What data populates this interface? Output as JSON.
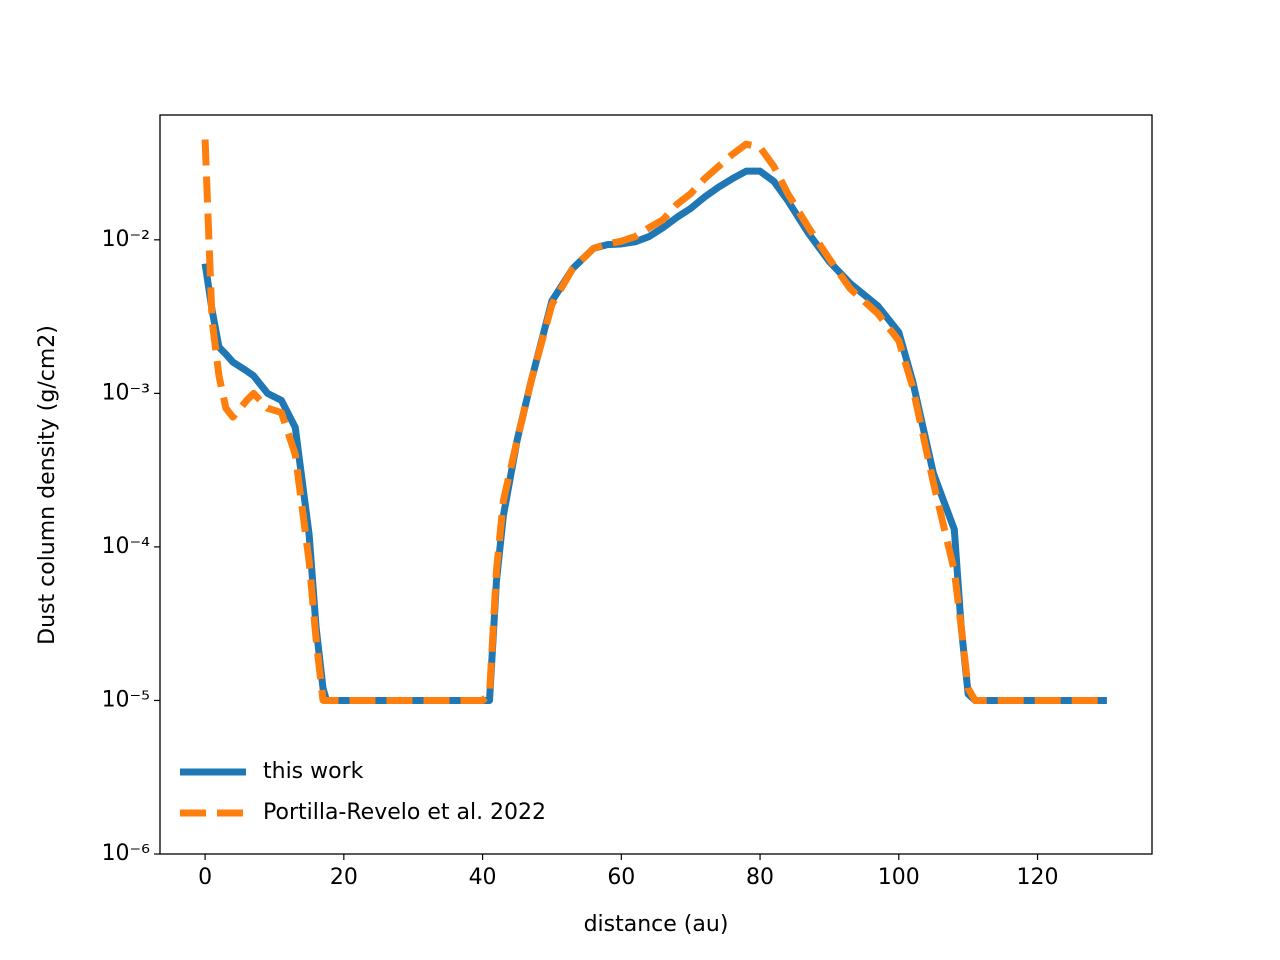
{
  "chart_data": {
    "type": "line",
    "xlabel": "distance (au)",
    "ylabel": "Dust column density (g/cm2)",
    "x": [
      0,
      1,
      2,
      3,
      4,
      6,
      7,
      9,
      11,
      13,
      15,
      16,
      17,
      17.5,
      20,
      30,
      40,
      41,
      42,
      43,
      45,
      47,
      50,
      53,
      56,
      58,
      60,
      62,
      64,
      66,
      68,
      70,
      72,
      74,
      76,
      78,
      80,
      82,
      84,
      87,
      90,
      93,
      97,
      100,
      102,
      105,
      108,
      109,
      110,
      111,
      112,
      120,
      130
    ],
    "series": [
      {
        "name": "this work",
        "color": "#1f77b4",
        "style": "solid",
        "values": [
          0.007,
          0.0035,
          0.002,
          0.0018,
          0.0016,
          0.0014,
          0.0013,
          0.001,
          0.0009,
          0.0006,
          0.00012,
          3e-05,
          1.2e-05,
          1e-05,
          1e-05,
          1e-05,
          1e-05,
          1e-05,
          6e-05,
          0.00016,
          0.0005,
          0.0012,
          0.004,
          0.0065,
          0.0088,
          0.0093,
          0.0094,
          0.0097,
          0.0105,
          0.012,
          0.014,
          0.016,
          0.019,
          0.022,
          0.025,
          0.028,
          0.028,
          0.024,
          0.018,
          0.011,
          0.0072,
          0.0052,
          0.0037,
          0.0025,
          0.0012,
          0.0003,
          0.00013,
          3e-05,
          1.1e-05,
          1e-05,
          1e-05,
          1e-05,
          1e-05
        ]
      },
      {
        "name": "Portilla-Revelo et al. 2022",
        "color": "#ff7f0e",
        "style": "dashed",
        "values": [
          0.045,
          0.003,
          0.0013,
          0.0008,
          0.0007,
          0.0009,
          0.001,
          0.0008,
          0.00075,
          0.0004,
          8e-05,
          2.5e-05,
          1e-05,
          1e-05,
          1e-05,
          1e-05,
          1e-05,
          1.1e-05,
          7e-05,
          0.0002,
          0.0005,
          0.0012,
          0.0038,
          0.0065,
          0.0088,
          0.0094,
          0.0098,
          0.0105,
          0.012,
          0.0135,
          0.017,
          0.02,
          0.025,
          0.03,
          0.036,
          0.042,
          0.04,
          0.03,
          0.02,
          0.012,
          0.0075,
          0.0048,
          0.0033,
          0.0022,
          0.0011,
          0.00026,
          7e-05,
          3e-05,
          1.2e-05,
          1e-05,
          1e-05,
          1e-05,
          1e-05
        ]
      }
    ],
    "xlim": [
      -6.5,
      136.5
    ],
    "xticks": [
      0,
      20,
      40,
      60,
      80,
      100,
      120
    ],
    "ylim": [
      1e-06,
      0.065
    ],
    "ylog": true,
    "yticks": [
      {
        "value": 1e-06,
        "label": "10⁻⁶"
      },
      {
        "value": 1e-05,
        "label": "10⁻⁵"
      },
      {
        "value": 0.0001,
        "label": "10⁻⁴"
      },
      {
        "value": 0.001,
        "label": "10⁻³"
      },
      {
        "value": 0.01,
        "label": "10⁻²"
      }
    ],
    "legend": "lower left"
  }
}
